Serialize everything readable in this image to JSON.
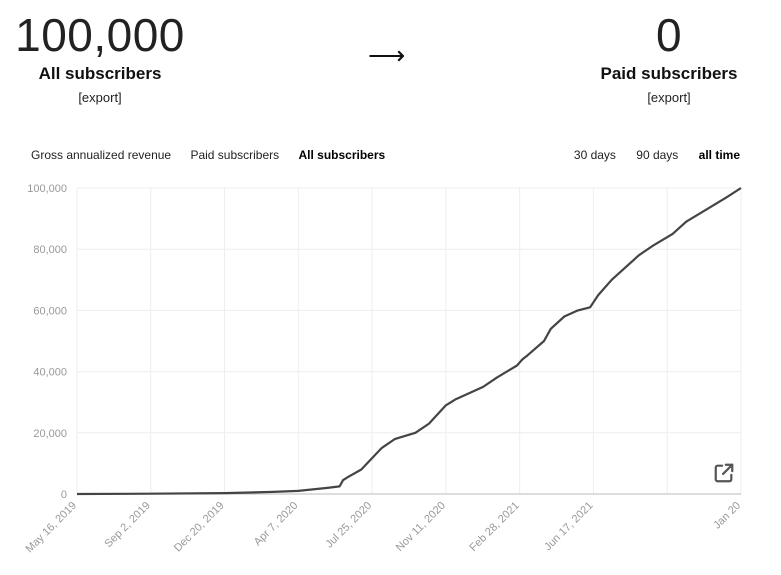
{
  "summary": {
    "all_count": "100,000",
    "all_label": "All subscribers",
    "all_export": "[export]",
    "arrow": "⟶",
    "paid_count": "0",
    "paid_label": "Paid subscribers",
    "paid_export": "[export]"
  },
  "metric_tabs": [
    "Gross annualized revenue",
    "Paid subscribers",
    "All subscribers"
  ],
  "active_metric": "All subscribers",
  "range_tabs": [
    "30 days",
    "90 days",
    "all time"
  ],
  "active_range": "all time",
  "icons": {
    "open_external": "external-link-icon"
  },
  "colors": {
    "line": "#444444",
    "grid": "#eeeeee",
    "axis_text": "#999999"
  },
  "chart_data": {
    "type": "line",
    "title": "",
    "xlabel": "",
    "ylabel": "",
    "ylim": [
      0,
      100000
    ],
    "yticks": [
      0,
      20000,
      40000,
      60000,
      80000,
      100000
    ],
    "ytick_labels": [
      "0",
      "20,000",
      "40,000",
      "60,000",
      "80,000",
      "100,000"
    ],
    "xticks": [
      0,
      109,
      218,
      327,
      436,
      545,
      654,
      763,
      872,
      981
    ],
    "xtick_labels": [
      "May 16, 2019",
      "Sep 2, 2019",
      "Dec 20, 2019",
      "Apr 7, 2020",
      "Jul 25, 2020",
      "Nov 11, 2020",
      "Feb 28, 2021",
      "Jun 17, 2021",
      "",
      "Jan 20"
    ],
    "x_unit": "days since May 16, 2019",
    "xlim": [
      0,
      981
    ],
    "grid": true,
    "series": [
      {
        "name": "All subscribers",
        "x": [
          0,
          109,
          218,
          290,
          327,
          370,
          388,
          393,
          400,
          420,
          450,
          470,
          500,
          520,
          545,
          560,
          580,
          600,
          620,
          635,
          650,
          658,
          664,
          690,
          700,
          720,
          740,
          758,
          770,
          790,
          830,
          850,
          880,
          900,
          930,
          960,
          981
        ],
        "values": [
          0,
          100,
          300,
          700,
          1000,
          2000,
          2500,
          4500,
          5500,
          8000,
          15000,
          18000,
          20000,
          23000,
          29000,
          31000,
          33000,
          35000,
          38000,
          40000,
          42000,
          44000,
          45000,
          50000,
          54000,
          58000,
          60000,
          61000,
          65000,
          70000,
          78000,
          81000,
          85000,
          89000,
          93000,
          97000,
          100000
        ]
      }
    ]
  }
}
